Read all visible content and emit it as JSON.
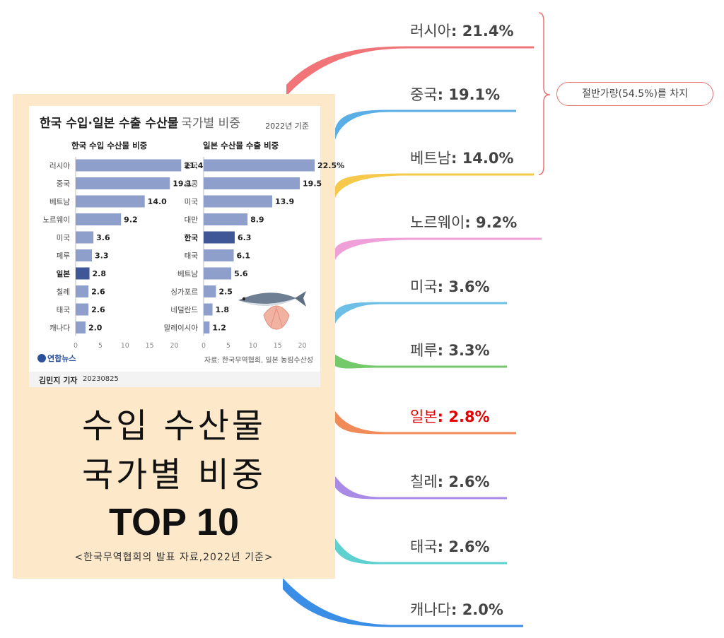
{
  "infographic": {
    "title": "한국 수입·일본 수출 수산물",
    "title_sub": "국가별 비중",
    "year": "2022년 기준",
    "logo": "연합뉴스",
    "source": "자료: 한국무역협회, 일본 농림수산성",
    "author": "김민지 기자",
    "date": "20230825"
  },
  "chart_data": [
    {
      "type": "bar",
      "orientation": "horizontal",
      "title": "한국 수입 수산물 비중",
      "categories": [
        "러시아",
        "중국",
        "베트남",
        "노르웨이",
        "미국",
        "페루",
        "일본",
        "칠레",
        "태국",
        "캐나다"
      ],
      "values": [
        21.4,
        19.1,
        14.0,
        9.2,
        3.6,
        3.3,
        2.8,
        2.6,
        2.6,
        2.0
      ],
      "value_labels": [
        "21.4%",
        "19.1",
        "14.0",
        "9.2",
        "3.6",
        "3.3",
        "2.8",
        "2.6",
        "2.6",
        "2.0"
      ],
      "highlight": "일본",
      "xlim": [
        0,
        22
      ],
      "xticks": [
        "0",
        "5",
        "10",
        "15",
        "20"
      ]
    },
    {
      "type": "bar",
      "orientation": "horizontal",
      "title": "일본 수산물 수출 비중",
      "categories": [
        "중국",
        "홍콩",
        "미국",
        "대만",
        "한국",
        "태국",
        "베트남",
        "싱가포르",
        "네덜란드",
        "말레이시아"
      ],
      "values": [
        22.5,
        19.5,
        13.9,
        8.9,
        6.3,
        6.1,
        5.6,
        2.5,
        1.8,
        1.2
      ],
      "value_labels": [
        "22.5%",
        "19.5",
        "13.9",
        "8.9",
        "6.3",
        "6.1",
        "5.6",
        "2.5",
        "1.8",
        "1.2"
      ],
      "highlight": "한국",
      "xlim": [
        0,
        22
      ],
      "xticks": [
        "0",
        "5",
        "10",
        "15",
        "20"
      ]
    }
  ],
  "center": {
    "line1": "수입 수산물",
    "line2": "국가별 비중",
    "line3": "TOP 10",
    "source_note": "<한국무역협회의 발표 자료,2022년 기준>"
  },
  "branches": [
    {
      "country": "러시아",
      "value": "21.4%",
      "color": "#f07478",
      "highlight": false
    },
    {
      "country": "중국",
      "value": "19.1%",
      "color": "#5aaee6",
      "highlight": false
    },
    {
      "country": "베트남",
      "value": "14.0%",
      "color": "#f6c94a",
      "highlight": false
    },
    {
      "country": "노르웨이",
      "value": "9.2%",
      "color": "#f0a0d8",
      "highlight": false
    },
    {
      "country": "미국",
      "value": "3.6%",
      "color": "#6dbfe6",
      "highlight": false
    },
    {
      "country": "페루",
      "value": "3.3%",
      "color": "#74c96b",
      "highlight": false
    },
    {
      "country": "일본",
      "value": "2.8%",
      "color": "#f08a58",
      "highlight": true
    },
    {
      "country": "칠레",
      "value": "2.6%",
      "color": "#a98ae4",
      "highlight": false
    },
    {
      "country": "태국",
      "value": "2.6%",
      "color": "#5ed0d0",
      "highlight": false
    },
    {
      "country": "캐나다",
      "value": "2.0%",
      "color": "#3a8ee6",
      "highlight": false
    }
  ],
  "bracket_note": "절반가량(54.5%)를 차지",
  "colors": {
    "bar": "#8f9fcc",
    "bar_highlight": "#3f5796",
    "card_bg": "#fde9c9",
    "bracket": "#e57373"
  }
}
